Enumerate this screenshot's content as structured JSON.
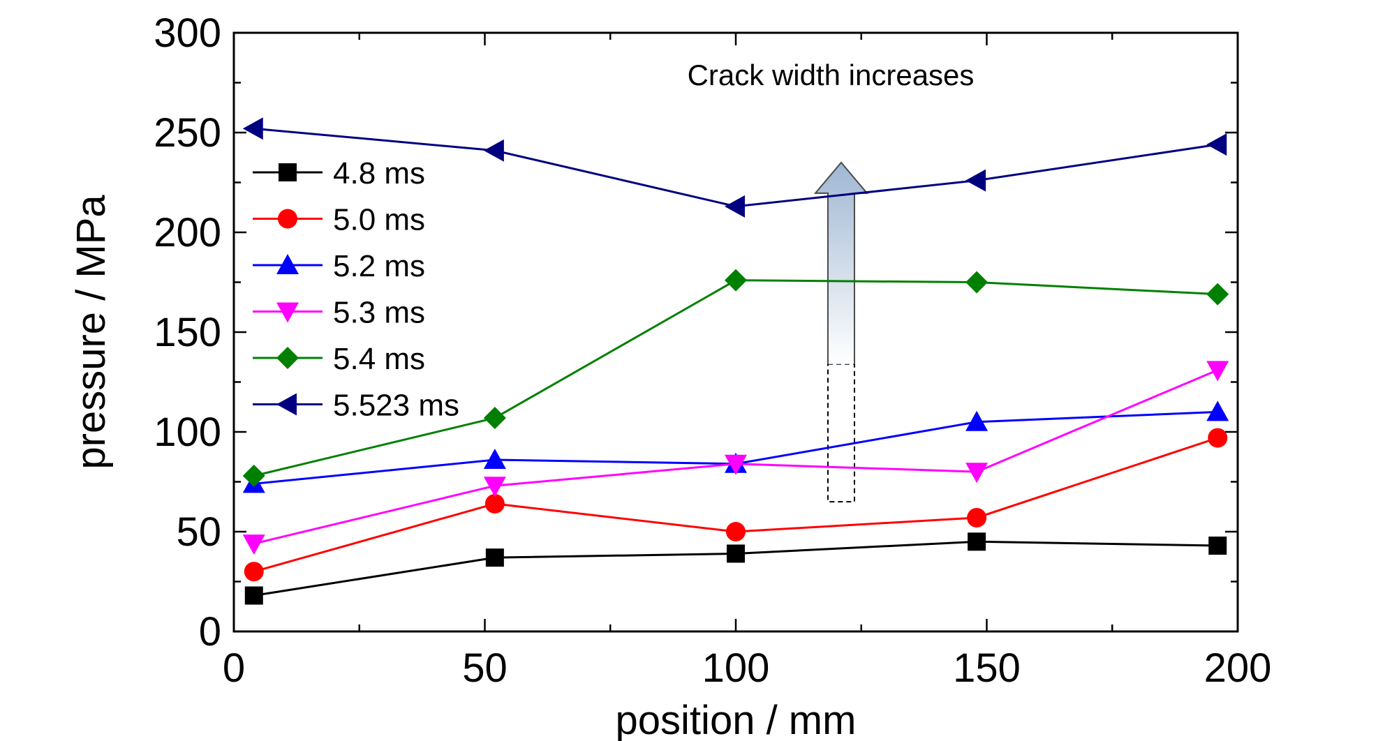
{
  "chart_data": {
    "type": "line",
    "title": "",
    "xlabel": "position / mm",
    "ylabel": "pressure / MPa",
    "xlim": [
      0,
      200
    ],
    "ylim": [
      0,
      300
    ],
    "xticks": [
      0,
      50,
      100,
      150,
      200
    ],
    "xtick_labels": [
      "0",
      "50",
      "100",
      "150",
      "200"
    ],
    "yticks": [
      0,
      50,
      100,
      150,
      200,
      250,
      300
    ],
    "ytick_labels": [
      "0",
      "50",
      "100",
      "150",
      "200",
      "250",
      "300"
    ],
    "grid": false,
    "legend_position": "upper-left",
    "x": [
      4,
      52,
      100,
      148,
      196
    ],
    "series": [
      {
        "name": "4.8 ms",
        "color": "#000000",
        "marker": "square",
        "values": [
          18,
          37,
          39,
          45,
          43
        ]
      },
      {
        "name": "5.0 ms",
        "color": "#ff0000",
        "marker": "circle",
        "values": [
          30,
          64,
          50,
          57,
          97
        ]
      },
      {
        "name": "5.2 ms",
        "color": "#0000ff",
        "marker": "triangle-up",
        "values": [
          74,
          86,
          84,
          105,
          110
        ]
      },
      {
        "name": "5.3 ms",
        "color": "#ff00ff",
        "marker": "triangle-down",
        "values": [
          44,
          73,
          84,
          80,
          131
        ]
      },
      {
        "name": "5.4 ms",
        "color": "#008000",
        "marker": "diamond",
        "values": [
          78,
          107,
          176,
          175,
          169
        ]
      },
      {
        "name": "5.523 ms",
        "color": "#000080",
        "marker": "triangle-left",
        "values": [
          252,
          241,
          213,
          226,
          244
        ]
      }
    ],
    "annotation": {
      "text": "Crack width increases",
      "arrow_x": 121,
      "arrow_dashed_from": 65,
      "arrow_solid_from": 134,
      "arrow_to": 235
    }
  }
}
